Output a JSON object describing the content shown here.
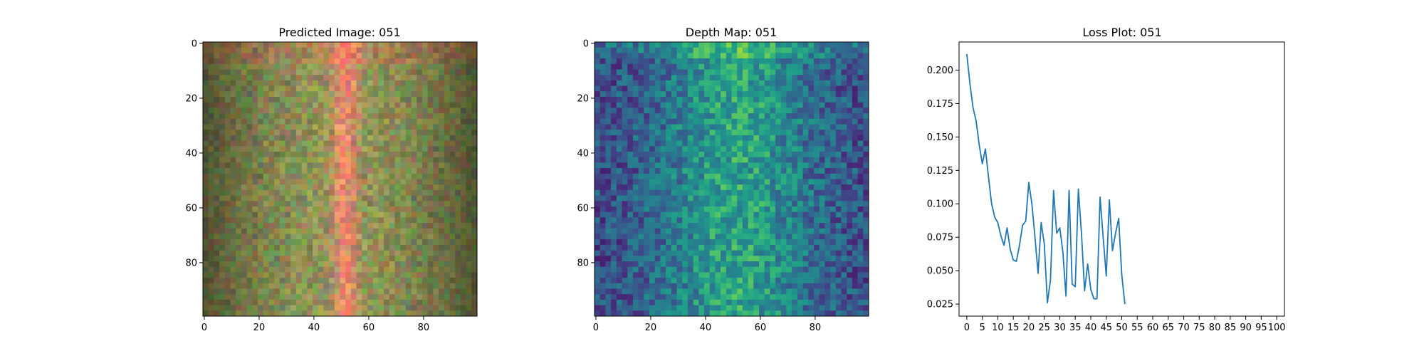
{
  "chart_data": [
    {
      "type": "heatmap",
      "title": "Predicted Image: 051",
      "colormap": "rgb-noise",
      "xlim": [
        0,
        99
      ],
      "ylim": [
        99,
        0
      ],
      "xticks": [
        0,
        20,
        40,
        60,
        80
      ],
      "yticks": [
        0,
        20,
        40,
        60,
        80
      ],
      "grid": false
    },
    {
      "type": "heatmap",
      "title": "Depth Map: 051",
      "colormap": "viridis",
      "xlim": [
        0,
        99
      ],
      "ylim": [
        99,
        0
      ],
      "xticks": [
        0,
        20,
        40,
        60,
        80
      ],
      "yticks": [
        0,
        20,
        40,
        60,
        80
      ],
      "grid": false
    },
    {
      "type": "line",
      "title": "Loss Plot: 051",
      "xlim": [
        -2.5,
        102.5
      ],
      "ylim": [
        0.016,
        0.221
      ],
      "xticks": [
        0,
        5,
        10,
        15,
        20,
        25,
        30,
        35,
        40,
        45,
        50,
        55,
        60,
        65,
        70,
        75,
        80,
        85,
        90,
        95,
        100
      ],
      "yticks": [
        0.025,
        0.05,
        0.075,
        0.1,
        0.125,
        0.15,
        0.175,
        0.2
      ],
      "ytick_labels": [
        "0.025",
        "0.050",
        "0.075",
        "0.100",
        "0.125",
        "0.150",
        "0.175",
        "0.200"
      ],
      "color": "#1f77b4",
      "grid": false,
      "series": [
        {
          "x": [
            0,
            1,
            2,
            3,
            4,
            5,
            6,
            7,
            8,
            9,
            10,
            11,
            12,
            13,
            14,
            15,
            16,
            17,
            18,
            19,
            20,
            21,
            22,
            23,
            24,
            25,
            26,
            27,
            28,
            29,
            30,
            31,
            32,
            33,
            34,
            35,
            36,
            37,
            38,
            39,
            40,
            41,
            42,
            43,
            44,
            45,
            46,
            47,
            48,
            49,
            50,
            51
          ],
          "values": [
            0.212,
            0.19,
            0.172,
            0.162,
            0.144,
            0.13,
            0.141,
            0.12,
            0.1,
            0.09,
            0.086,
            0.076,
            0.069,
            0.082,
            0.066,
            0.058,
            0.057,
            0.069,
            0.084,
            0.087,
            0.116,
            0.1,
            0.075,
            0.048,
            0.086,
            0.07,
            0.026,
            0.043,
            0.11,
            0.078,
            0.082,
            0.064,
            0.031,
            0.11,
            0.04,
            0.038,
            0.111,
            0.078,
            0.035,
            0.055,
            0.036,
            0.029,
            0.029,
            0.105,
            0.075,
            0.046,
            0.103,
            0.065,
            0.078,
            0.089,
            0.047,
            0.025
          ]
        }
      ]
    }
  ]
}
